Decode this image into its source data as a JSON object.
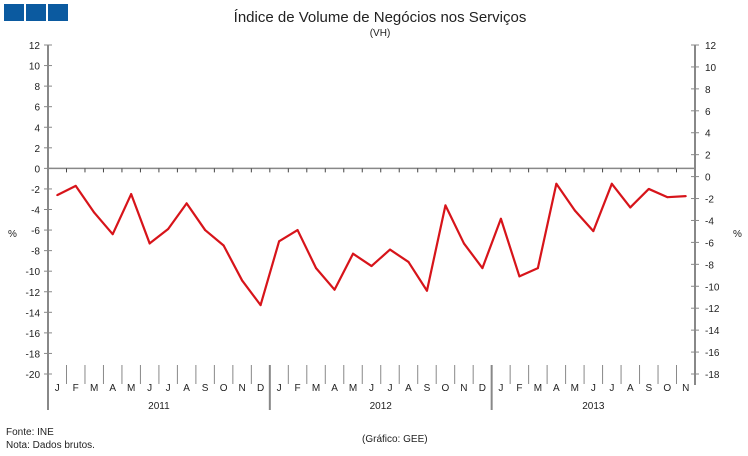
{
  "logo": {
    "color": "#0b5aa0",
    "blocks": 3
  },
  "footer": {
    "source": "Fonte: INE",
    "note": "Nota: Dados brutos.",
    "credit": "(Gráfico: GEE)"
  },
  "chart_data": {
    "type": "line",
    "title": "Índice de Volume de Negócios nos Serviços",
    "subtitle": "(VH)",
    "ylabel_left": "%",
    "ylabel_right": "%",
    "ylim_left": [
      -20,
      12
    ],
    "yticks_left": [
      12,
      10,
      8,
      6,
      4,
      2,
      0,
      -2,
      -4,
      -6,
      -8,
      -10,
      -12,
      -14,
      -16,
      -18,
      -20
    ],
    "ylim_right": [
      -18,
      12
    ],
    "yticks_right": [
      12,
      10,
      8,
      6,
      4,
      2,
      0,
      -2,
      -4,
      -6,
      -8,
      -10,
      -12,
      -14,
      -16,
      -18
    ],
    "months": [
      "J",
      "F",
      "M",
      "A",
      "M",
      "J",
      "J",
      "A",
      "S",
      "O",
      "N",
      "D",
      "J",
      "F",
      "M",
      "A",
      "M",
      "J",
      "J",
      "A",
      "S",
      "O",
      "N",
      "D",
      "J",
      "F",
      "M",
      "A",
      "M",
      "J",
      "J",
      "A",
      "S",
      "O",
      "N"
    ],
    "years": [
      "2011",
      "2012",
      "2013"
    ],
    "grid": false,
    "line_color": "#d7141a",
    "series": [
      {
        "values": [
          -2.6,
          -1.7,
          -4.3,
          -6.4,
          -2.5,
          -7.3,
          -5.9,
          -3.4,
          -6.0,
          -7.5,
          -10.9,
          -13.3,
          -7.1,
          -6.0,
          -9.7,
          -11.8,
          -8.3,
          -9.5,
          -7.9,
          -9.1,
          -11.9,
          -3.6,
          -7.3,
          -9.7,
          -4.9,
          -10.5,
          -9.7,
          -1.5,
          -4.1,
          -6.1,
          -1.5,
          -3.8,
          -2.0,
          -2.8,
          -2.7
        ]
      }
    ]
  }
}
